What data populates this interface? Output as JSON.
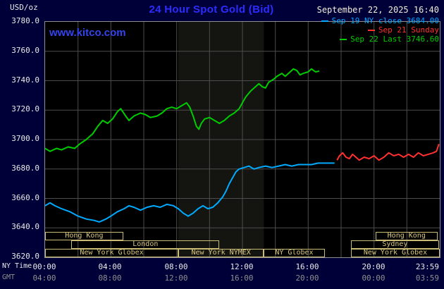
{
  "header": {
    "units_label": "USD/oz",
    "title": "24 Hour Spot Gold (Bid)",
    "datetime": "September 22, 2025 16:40",
    "watermark": "www.kitco.com",
    "legend": [
      {
        "label": "Sep 19 NY close 3684.00",
        "color": "#00aaff"
      },
      {
        "label": "Sep 21 Sunday",
        "color": "#ff3030"
      },
      {
        "label": "Sep 22 Last 3746.60",
        "color": "#00cc00"
      }
    ]
  },
  "axis": {
    "ny_label": "NY Time",
    "gmt_label": "GMT",
    "ny_ticks": [
      "00:00",
      "04:00",
      "08:00",
      "12:00",
      "16:00",
      "20:00",
      "23:59"
    ],
    "gmt_ticks": [
      "04:00",
      "08:00",
      "12:00",
      "16:00",
      "20:00",
      "00:00",
      "03:59"
    ]
  },
  "sessions": [
    {
      "row": 0,
      "label": "Hong Kong",
      "start": 0,
      "end": 4.75
    },
    {
      "row": 0,
      "label": "Hong Kong",
      "start": 20.1,
      "end": 23.85
    },
    {
      "row": 1,
      "label": "London",
      "start": 1.6,
      "end": 10.6
    },
    {
      "row": 1,
      "label": "Sydney",
      "start": 18.6,
      "end": 23.95
    },
    {
      "row": 2,
      "label": "New York Globex",
      "start": 0,
      "end": 8.1
    },
    {
      "row": 2,
      "label": "New York NYMEX",
      "start": 8.1,
      "end": 13.3
    },
    {
      "row": 2,
      "label": "NY Globex",
      "start": 13.3,
      "end": 17.0
    },
    {
      "row": 2,
      "label": "New York Globex",
      "start": 18.6,
      "end": 24
    }
  ],
  "chart_data": {
    "type": "line",
    "title": "24 Hour Spot Gold (Bid)",
    "xlabel": "NY Time (hours)",
    "ylabel": "USD/oz",
    "xlim": [
      0,
      24
    ],
    "ylim": [
      3620,
      3780
    ],
    "grid": true,
    "legend_position": "top-right",
    "grid_color": "#4d4d4d",
    "y_tick_labels": [
      "3780.0",
      "3760.0",
      "3740.0",
      "3720.0",
      "3700.0",
      "3680.0",
      "3660.0",
      "3640.0",
      "3620.0"
    ],
    "y_gridlines": [
      3640,
      3660,
      3680,
      3700,
      3720,
      3740,
      3760
    ],
    "x_gridlines": [
      2,
      4,
      6,
      8,
      10,
      12,
      14,
      16,
      18,
      20,
      22
    ],
    "session_band": {
      "start": 8.1,
      "end": 13.3,
      "color": "#141410"
    },
    "series": [
      {
        "name": "Sep 19 NY close",
        "key": "sep19-ny-close",
        "color": "#00aaff",
        "close_value": 3684.0,
        "points": [
          [
            0,
            3655
          ],
          [
            0.3,
            3657
          ],
          [
            0.6,
            3655
          ],
          [
            1,
            3653
          ],
          [
            1.5,
            3651
          ],
          [
            2,
            3648
          ],
          [
            2.5,
            3646
          ],
          [
            3,
            3645
          ],
          [
            3.3,
            3644
          ],
          [
            3.7,
            3646
          ],
          [
            4,
            3648
          ],
          [
            4.4,
            3651
          ],
          [
            4.8,
            3653
          ],
          [
            5.1,
            3655
          ],
          [
            5.4,
            3654
          ],
          [
            5.8,
            3652
          ],
          [
            6.2,
            3654
          ],
          [
            6.6,
            3655
          ],
          [
            7,
            3654
          ],
          [
            7.4,
            3656
          ],
          [
            7.8,
            3655
          ],
          [
            8.1,
            3653
          ],
          [
            8.4,
            3650
          ],
          [
            8.7,
            3648
          ],
          [
            9,
            3650
          ],
          [
            9.3,
            3653
          ],
          [
            9.6,
            3655
          ],
          [
            9.9,
            3653
          ],
          [
            10.2,
            3654
          ],
          [
            10.5,
            3657
          ],
          [
            10.8,
            3661
          ],
          [
            11,
            3665
          ],
          [
            11.2,
            3670
          ],
          [
            11.4,
            3674
          ],
          [
            11.6,
            3678
          ],
          [
            11.8,
            3680
          ],
          [
            12.1,
            3681
          ],
          [
            12.4,
            3682
          ],
          [
            12.7,
            3680
          ],
          [
            13,
            3681
          ],
          [
            13.4,
            3682
          ],
          [
            13.8,
            3681
          ],
          [
            14.2,
            3682
          ],
          [
            14.6,
            3683
          ],
          [
            15,
            3682
          ],
          [
            15.4,
            3683
          ],
          [
            15.8,
            3683
          ],
          [
            16.2,
            3683
          ],
          [
            16.6,
            3684
          ],
          [
            17,
            3684
          ],
          [
            17.6,
            3684
          ]
        ]
      },
      {
        "name": "Sep 21 Sunday",
        "key": "sep21-sunday",
        "color": "#ff3030",
        "points": [
          [
            17.75,
            3686
          ],
          [
            17.9,
            3689
          ],
          [
            18.1,
            3691
          ],
          [
            18.3,
            3688
          ],
          [
            18.5,
            3687
          ],
          [
            18.7,
            3690
          ],
          [
            18.9,
            3688
          ],
          [
            19.1,
            3686
          ],
          [
            19.4,
            3688
          ],
          [
            19.7,
            3687
          ],
          [
            20,
            3689
          ],
          [
            20.3,
            3686
          ],
          [
            20.6,
            3688
          ],
          [
            20.9,
            3691
          ],
          [
            21.2,
            3689
          ],
          [
            21.5,
            3690
          ],
          [
            21.8,
            3688
          ],
          [
            22.1,
            3690
          ],
          [
            22.4,
            3688
          ],
          [
            22.7,
            3691
          ],
          [
            23,
            3689
          ],
          [
            23.3,
            3690
          ],
          [
            23.6,
            3691
          ],
          [
            23.8,
            3692
          ],
          [
            23.95,
            3697
          ]
        ]
      },
      {
        "name": "Sep 22",
        "key": "sep22-last",
        "color": "#00cc00",
        "last_value": 3746.6,
        "points": [
          [
            0,
            3694
          ],
          [
            0.3,
            3692
          ],
          [
            0.7,
            3694
          ],
          [
            1,
            3693
          ],
          [
            1.4,
            3695
          ],
          [
            1.8,
            3694
          ],
          [
            2.1,
            3697
          ],
          [
            2.5,
            3700
          ],
          [
            2.9,
            3704
          ],
          [
            3.2,
            3709
          ],
          [
            3.5,
            3713
          ],
          [
            3.8,
            3711
          ],
          [
            4.1,
            3714
          ],
          [
            4.4,
            3719
          ],
          [
            4.6,
            3721
          ],
          [
            4.9,
            3716
          ],
          [
            5.1,
            3713
          ],
          [
            5.4,
            3716
          ],
          [
            5.8,
            3718
          ],
          [
            6.1,
            3717
          ],
          [
            6.4,
            3715
          ],
          [
            6.8,
            3716
          ],
          [
            7.1,
            3718
          ],
          [
            7.4,
            3721
          ],
          [
            7.7,
            3722
          ],
          [
            8,
            3721
          ],
          [
            8.3,
            3723
          ],
          [
            8.6,
            3725
          ],
          [
            8.8,
            3722
          ],
          [
            9,
            3716
          ],
          [
            9.2,
            3709
          ],
          [
            9.35,
            3707
          ],
          [
            9.5,
            3711
          ],
          [
            9.7,
            3714
          ],
          [
            10,
            3715
          ],
          [
            10.3,
            3713
          ],
          [
            10.6,
            3711
          ],
          [
            10.9,
            3713
          ],
          [
            11.2,
            3716
          ],
          [
            11.5,
            3718
          ],
          [
            11.8,
            3721
          ],
          [
            12,
            3725
          ],
          [
            12.2,
            3729
          ],
          [
            12.5,
            3733
          ],
          [
            12.8,
            3736
          ],
          [
            13,
            3738
          ],
          [
            13.2,
            3736
          ],
          [
            13.4,
            3735
          ],
          [
            13.6,
            3739
          ],
          [
            13.9,
            3741
          ],
          [
            14.1,
            3743
          ],
          [
            14.4,
            3745
          ],
          [
            14.6,
            3743
          ],
          [
            14.9,
            3746
          ],
          [
            15.1,
            3748
          ],
          [
            15.3,
            3747
          ],
          [
            15.5,
            3744
          ],
          [
            15.7,
            3745
          ],
          [
            16,
            3746
          ],
          [
            16.2,
            3748
          ],
          [
            16.45,
            3746
          ],
          [
            16.67,
            3746.6
          ]
        ]
      }
    ]
  }
}
